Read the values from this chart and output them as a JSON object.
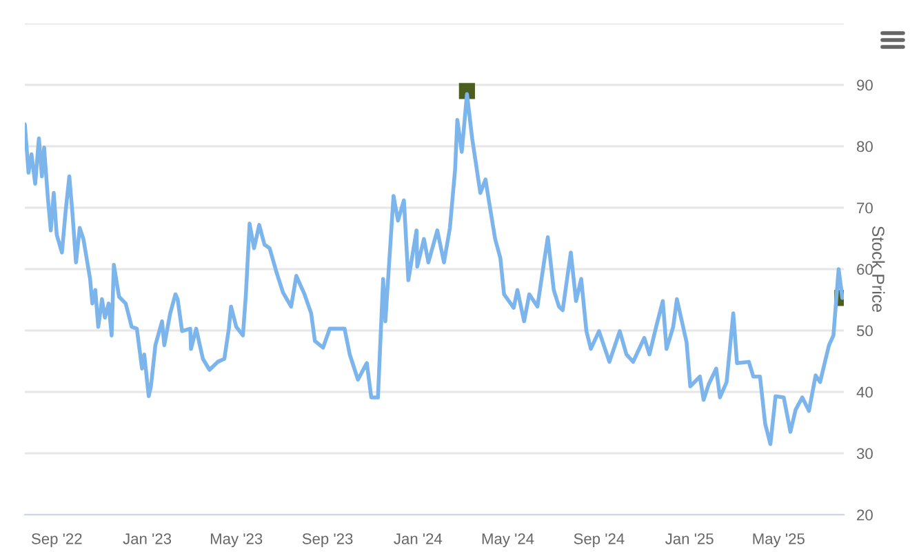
{
  "chart_data": {
    "type": "line",
    "ylabel": "Stock Price",
    "xlim": [
      "2022-07-20",
      "2025-07-28"
    ],
    "xticks": [
      {
        "value": "2022-09-01",
        "label": "Sep '22"
      },
      {
        "value": "2023-01-01",
        "label": "Jan '23"
      },
      {
        "value": "2023-05-01",
        "label": "May '23"
      },
      {
        "value": "2023-09-01",
        "label": "Sep '23"
      },
      {
        "value": "2024-01-01",
        "label": "Jan '24"
      },
      {
        "value": "2024-05-01",
        "label": "May '24"
      },
      {
        "value": "2024-09-01",
        "label": "Sep '24"
      },
      {
        "value": "2025-01-01",
        "label": "Jan '25"
      },
      {
        "value": "2025-05-01",
        "label": "May '25"
      }
    ],
    "ylim": [
      20,
      100
    ],
    "yticks": [
      20,
      30,
      40,
      50,
      60,
      70,
      80,
      90,
      {
        "value": 100,
        "label": null
      }
    ],
    "grid": "y",
    "legend": false,
    "series": [
      {
        "type": "line",
        "color": "#7cb5ec",
        "marker": "none",
        "line_style": "solid",
        "x": [
          "2022-07-20",
          "2022-07-25",
          "2022-07-29",
          "2022-08-03",
          "2022-08-08",
          "2022-08-12",
          "2022-08-15",
          "2022-08-20",
          "2022-08-24",
          "2022-08-28",
          "2022-09-01",
          "2022-09-08",
          "2022-09-13",
          "2022-09-18",
          "2022-09-22",
          "2022-09-27",
          "2022-10-02",
          "2022-10-07",
          "2022-10-16",
          "2022-10-19",
          "2022-10-23",
          "2022-10-27",
          "2022-11-01",
          "2022-11-05",
          "2022-11-10",
          "2022-11-14",
          "2022-11-17",
          "2022-11-24",
          "2022-12-03",
          "2022-12-11",
          "2022-12-18",
          "2022-12-25",
          "2022-12-28",
          "2023-01-03",
          "2023-01-06",
          "2023-01-12",
          "2023-01-21",
          "2023-01-24",
          "2023-02-01",
          "2023-02-08",
          "2023-02-11",
          "2023-02-17",
          "2023-02-28",
          "2023-03-01",
          "2023-03-08",
          "2023-03-17",
          "2023-03-26",
          "2023-04-06",
          "2023-04-15",
          "2023-04-21",
          "2023-04-24",
          "2023-05-01",
          "2023-05-10",
          "2023-05-14",
          "2023-05-19",
          "2023-05-25",
          "2023-06-01",
          "2023-06-08",
          "2023-06-15",
          "2023-06-24",
          "2023-07-03",
          "2023-07-14",
          "2023-07-21",
          "2023-08-01",
          "2023-08-10",
          "2023-08-15",
          "2023-08-26",
          "2023-09-04",
          "2023-09-24",
          "2023-10-01",
          "2023-10-12",
          "2023-10-24",
          "2023-10-30",
          "2023-11-08",
          "2023-11-15",
          "2023-11-18",
          "2023-11-29",
          "2023-12-05",
          "2023-12-13",
          "2023-12-19",
          "2023-12-30",
          "2023-12-31",
          "2024-01-09",
          "2024-01-15",
          "2024-01-27",
          "2024-02-05",
          "2024-02-13",
          "2024-02-20",
          "2024-02-23",
          "2024-02-29",
          "2024-03-07",
          "2024-03-14",
          "2024-03-25",
          "2024-04-01",
          "2024-04-06",
          "2024-04-14",
          "2024-04-21",
          "2024-04-26",
          "2024-05-09",
          "2024-05-14",
          "2024-05-23",
          "2024-05-30",
          "2024-06-10",
          "2024-06-17",
          "2024-06-24",
          "2024-07-02",
          "2024-07-09",
          "2024-07-14",
          "2024-07-25",
          "2024-08-01",
          "2024-08-08",
          "2024-08-15",
          "2024-08-21",
          "2024-09-01",
          "2024-09-15",
          "2024-09-29",
          "2024-10-08",
          "2024-10-17",
          "2024-11-01",
          "2024-11-08",
          "2024-11-17",
          "2024-11-26",
          "2024-12-01",
          "2024-12-10",
          "2024-12-15",
          "2024-12-28",
          "2025-01-02",
          "2025-01-15",
          "2025-01-20",
          "2025-01-27",
          "2025-02-06",
          "2025-02-11",
          "2025-02-20",
          "2025-03-01",
          "2025-03-06",
          "2025-03-22",
          "2025-03-28",
          "2025-04-06",
          "2025-04-13",
          "2025-04-20",
          "2025-04-27",
          "2025-05-08",
          "2025-05-17",
          "2025-05-24",
          "2025-06-02",
          "2025-06-11",
          "2025-06-20",
          "2025-06-26",
          "2025-07-08",
          "2025-07-14",
          "2025-07-21",
          "2025-07-26"
        ],
        "values": [
          83.6,
          75.7,
          78.7,
          73.9,
          81.3,
          75.1,
          79.8,
          71.7,
          66.3,
          72.4,
          65.6,
          62.7,
          69.4,
          75.1,
          69.4,
          61.1,
          66.7,
          64.9,
          58.4,
          54.4,
          56.6,
          50.6,
          55.1,
          52.1,
          54.4,
          49.2,
          60.7,
          55.5,
          54.4,
          50.6,
          50.3,
          43.8,
          46.1,
          39.3,
          40.9,
          47.6,
          51.5,
          47.6,
          52.8,
          55.9,
          55.1,
          49.9,
          50.3,
          47.0,
          50.3,
          45.4,
          43.6,
          44.9,
          45.4,
          50.3,
          53.9,
          50.6,
          49.2,
          55.9,
          67.4,
          63.4,
          67.2,
          64.0,
          63.4,
          59.6,
          56.2,
          53.9,
          58.9,
          55.9,
          52.8,
          48.3,
          47.2,
          50.3,
          50.3,
          46.1,
          42.0,
          44.7,
          39.1,
          39.1,
          58.4,
          51.5,
          71.9,
          67.9,
          71.2,
          58.2,
          66.3,
          60.4,
          64.9,
          61.1,
          66.3,
          61.1,
          66.7,
          76.2,
          84.3,
          79.1,
          88.5,
          81.3,
          72.4,
          74.6,
          70.8,
          64.9,
          61.8,
          55.9,
          53.7,
          56.6,
          51.5,
          55.9,
          53.9,
          59.6,
          65.2,
          56.6,
          53.9,
          53.3,
          62.7,
          54.8,
          58.4,
          49.9,
          47.0,
          49.9,
          44.9,
          49.9,
          46.1,
          44.9,
          48.8,
          46.1,
          50.6,
          54.8,
          47.0,
          50.6,
          55.1,
          48.1,
          40.9,
          42.5,
          38.7,
          41.3,
          43.8,
          39.1,
          41.6,
          52.8,
          44.7,
          44.9,
          42.5,
          42.5,
          34.8,
          31.5,
          39.3,
          39.1,
          33.5,
          37.1,
          39.1,
          36.9,
          42.7,
          41.6,
          47.6,
          49.2,
          60.0,
          55.3
        ]
      },
      {
        "type": "scatter",
        "color": "#4b5e20",
        "marker": "square",
        "x": [
          "2024-03-07",
          "2025-07-26"
        ],
        "values": [
          89.0,
          55.3
        ]
      }
    ]
  }
}
